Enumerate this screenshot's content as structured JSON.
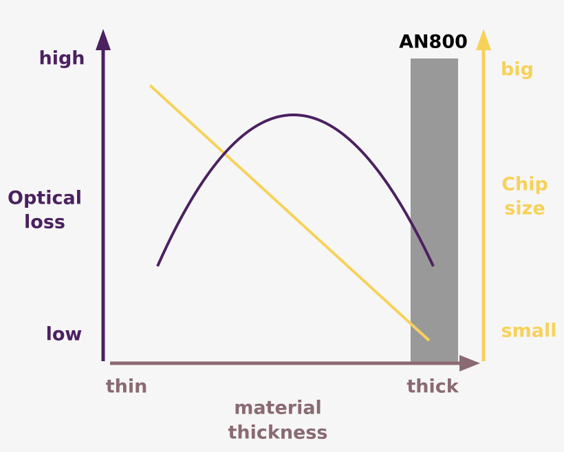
{
  "left_axis": {
    "high": "high",
    "label": [
      "Optical",
      "loss"
    ],
    "low": "low"
  },
  "right_axis": {
    "high": "big",
    "label": [
      "Chip",
      "size"
    ],
    "low": "small"
  },
  "x_axis": {
    "low": "thin",
    "high": "thick",
    "label": [
      "material",
      "thickness"
    ]
  },
  "highlight": {
    "label": "AN800"
  }
}
